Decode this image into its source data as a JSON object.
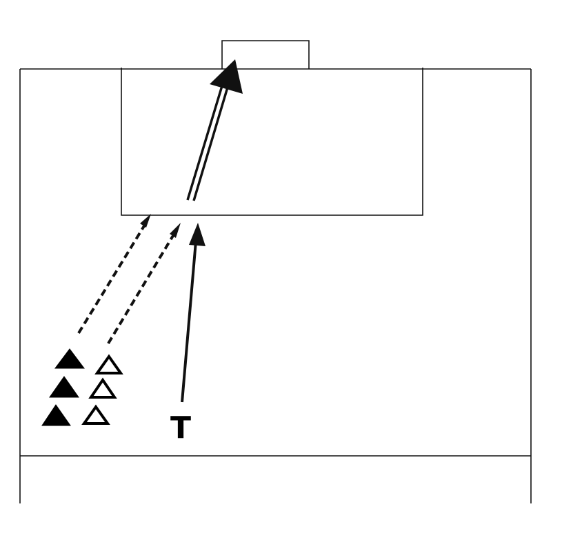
{
  "diagram": {
    "coach_label": "T"
  },
  "colors": {
    "lines": "#111111",
    "player_filled": "#000000",
    "player_open": "#ffffff",
    "background": "#ffffff"
  },
  "elements": {
    "filled_players": 3,
    "open_players": 3,
    "dashed_runs": 2,
    "coach_run": 1,
    "shot": 1
  }
}
